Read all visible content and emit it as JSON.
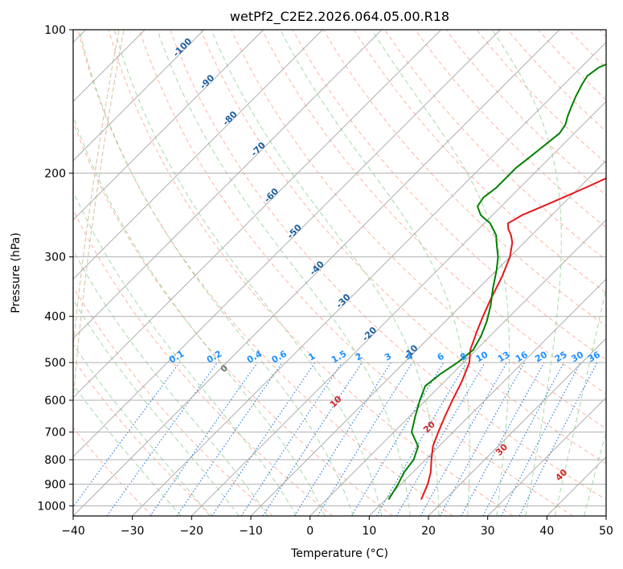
{
  "chart_data": {
    "type": "line",
    "title": "wetPf2_C2E2.2026.064.05.00.R18",
    "xlabel": "Temperature (°C)",
    "ylabel": "Pressure (hPa)",
    "xlim": [
      -40,
      50
    ],
    "ylim": [
      1050,
      100
    ],
    "x_ticks": [
      -40,
      -30,
      -20,
      -10,
      0,
      10,
      20,
      30,
      40,
      50
    ],
    "x_tick_labels": [
      "−40",
      "−30",
      "−20",
      "−10",
      "0",
      "10",
      "20",
      "30",
      "40",
      "50"
    ],
    "y_ticks": [
      100,
      200,
      300,
      400,
      500,
      600,
      700,
      800,
      900,
      1000
    ],
    "y_tick_labels": [
      "100",
      "200",
      "300",
      "400",
      "500",
      "600",
      "700",
      "800",
      "900",
      "1000"
    ],
    "series": [
      {
        "name": "Temperature",
        "color": "#e41a1c",
        "points": [
          [
            16,
            970
          ],
          [
            14.5,
            900
          ],
          [
            13,
            850
          ],
          [
            11,
            800
          ],
          [
            9,
            750
          ],
          [
            7.5,
            700
          ],
          [
            6,
            650
          ],
          [
            4.5,
            600
          ],
          [
            3,
            550
          ],
          [
            1,
            500
          ],
          [
            -1,
            470
          ],
          [
            -3,
            430
          ],
          [
            -4.5,
            400
          ],
          [
            -6,
            370
          ],
          [
            -8,
            330
          ],
          [
            -10,
            300
          ],
          [
            -12,
            280
          ],
          [
            -13.5,
            270
          ],
          [
            -15,
            262
          ],
          [
            -16,
            255
          ],
          [
            -15,
            245
          ],
          [
            -13,
            235
          ],
          [
            -11,
            225
          ],
          [
            -9,
            215
          ],
          [
            -7,
            205
          ],
          [
            -5,
            195
          ],
          [
            -3,
            185
          ],
          [
            -1,
            175
          ],
          [
            1,
            165
          ],
          [
            3,
            155
          ],
          [
            5,
            145
          ],
          [
            7,
            135
          ],
          [
            8.5,
            125
          ],
          [
            10,
            115
          ],
          [
            11.5,
            108
          ],
          [
            12.5,
            100
          ]
        ]
      },
      {
        "name": "Dewpoint",
        "color": "#008000",
        "points": [
          [
            10.5,
            970
          ],
          [
            9.5,
            900
          ],
          [
            8.5,
            850
          ],
          [
            8,
            800
          ],
          [
            6.5,
            750
          ],
          [
            3,
            700
          ],
          [
            1,
            650
          ],
          [
            -1,
            600
          ],
          [
            -2.5,
            560
          ],
          [
            -2,
            530
          ],
          [
            -1,
            500
          ],
          [
            -0.5,
            470
          ],
          [
            -1.5,
            440
          ],
          [
            -3,
            410
          ],
          [
            -5,
            380
          ],
          [
            -7.5,
            350
          ],
          [
            -10,
            320
          ],
          [
            -12,
            300
          ],
          [
            -14,
            285
          ],
          [
            -16,
            270
          ],
          [
            -19,
            255
          ],
          [
            -22,
            245
          ],
          [
            -24,
            235
          ],
          [
            -24.5,
            225
          ],
          [
            -24,
            215
          ],
          [
            -24,
            205
          ],
          [
            -24,
            195
          ],
          [
            -23.5,
            185
          ],
          [
            -23,
            175
          ],
          [
            -22.5,
            165
          ],
          [
            -23,
            158
          ],
          [
            -24,
            152
          ],
          [
            -25,
            145
          ],
          [
            -26,
            138
          ],
          [
            -27,
            130
          ],
          [
            -27.5,
            125
          ],
          [
            -27,
            120
          ],
          [
            -25,
            115
          ],
          [
            -22,
            110
          ],
          [
            -19,
            105
          ],
          [
            -17,
            100
          ]
        ]
      }
    ],
    "isotherm_labels": [
      "-100",
      "-90",
      "-80",
      "-70",
      "-60",
      "-50",
      "-40",
      "-30",
      "-20",
      "-10"
    ],
    "isotherm_values": [
      -100,
      -90,
      -80,
      -70,
      -60,
      -50,
      -40,
      -30,
      -20,
      -10
    ],
    "mixing_ratio_labels": [
      "0.1",
      "0.2",
      "0.4",
      "0.6",
      "1",
      "1.5",
      "2",
      "3",
      "4",
      "6",
      "8",
      "10",
      "13",
      "16",
      "20",
      "25",
      "30",
      "36"
    ],
    "mixing_ratio_values": [
      0.1,
      0.2,
      0.4,
      0.6,
      1,
      1.5,
      2,
      3,
      4,
      6,
      8,
      10,
      13,
      16,
      20,
      25,
      30,
      36
    ],
    "moist_adiabat_labels": [
      "0",
      "10",
      "20",
      "30",
      "40"
    ],
    "moist_adiabat_values": [
      0,
      10,
      20,
      30,
      40
    ],
    "colors": {
      "grid": "#b0b0b0",
      "skew_isotherm": "#a0a0a0",
      "dry_adiabat": "#ff9980",
      "moist_adiabat": "#8fcf8f",
      "mixing_ratio": "#1f77d4",
      "isotherm_label": "#1f5fa0",
      "mixing_label": "#1e90ff",
      "moist_label": "#d62728",
      "moist_zero_label": "#777777",
      "tan_curve": "#d8c4a8"
    }
  }
}
